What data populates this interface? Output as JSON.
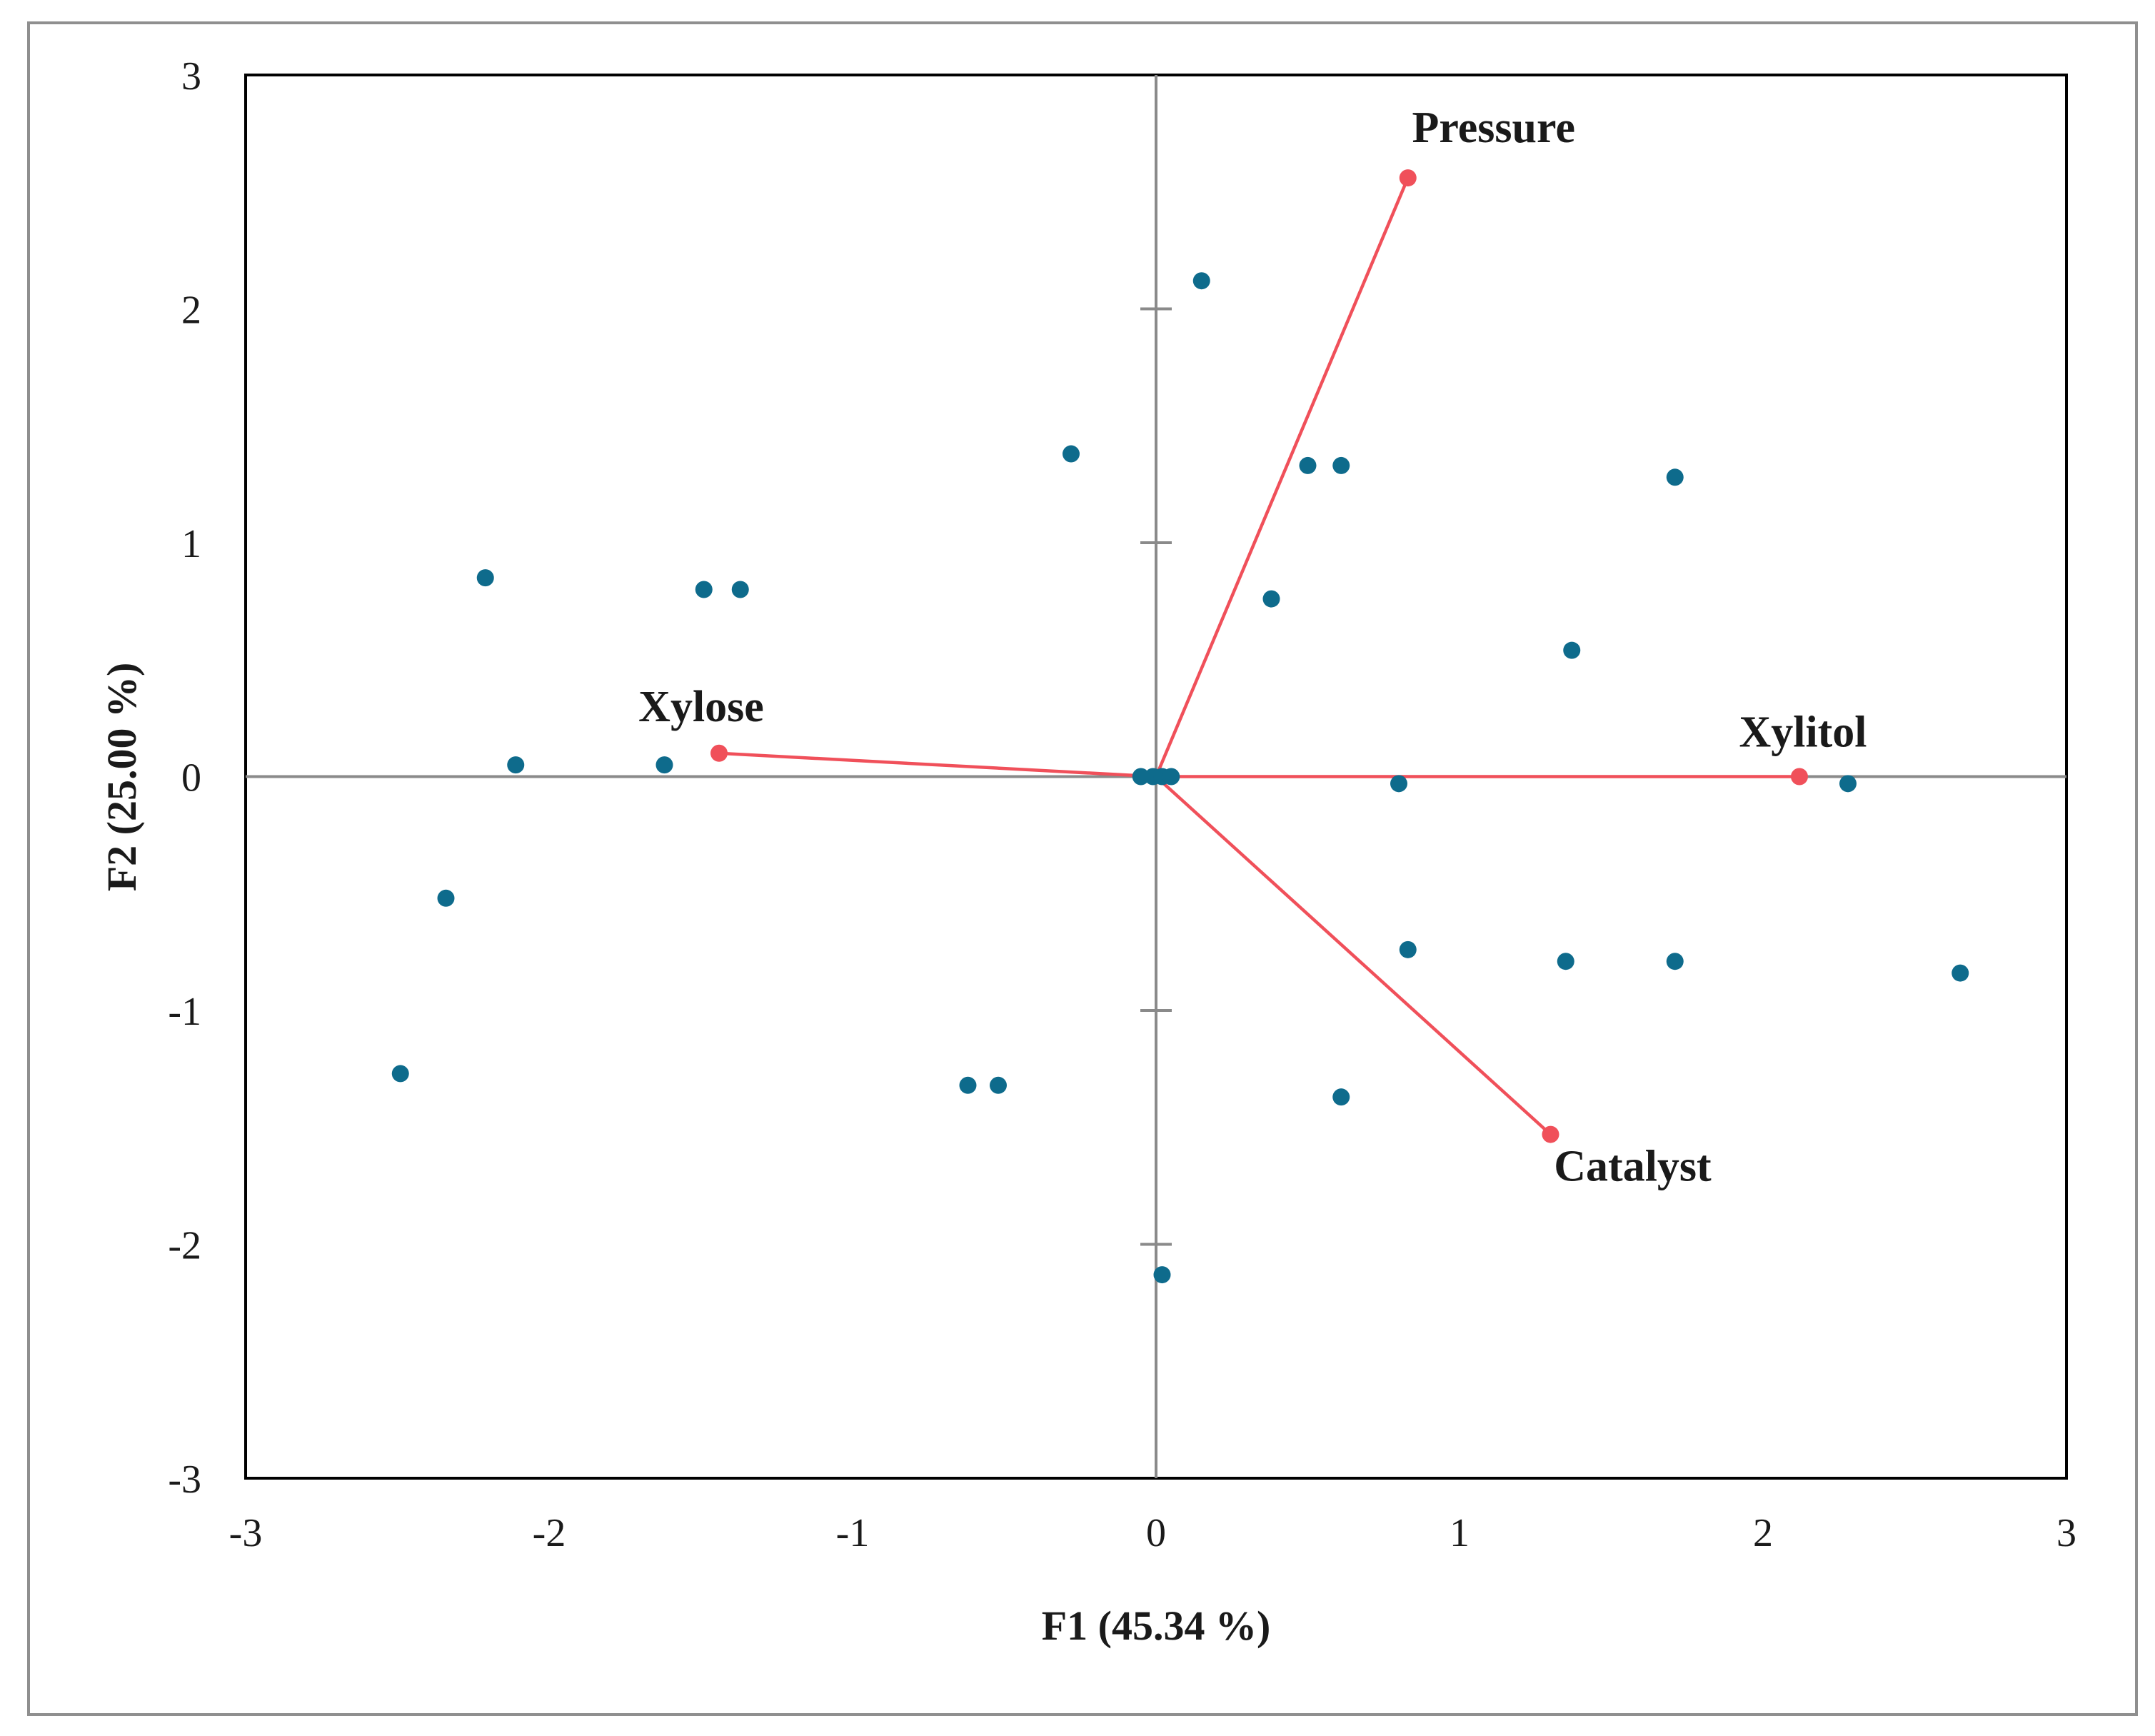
{
  "chart_data": {
    "type": "scatter",
    "title": "",
    "xlabel": "F1 (45.34 %)",
    "ylabel": "F2 (25.00 %)",
    "xlim": [
      -3,
      3
    ],
    "ylim": [
      -3,
      3
    ],
    "xticks": [
      "-3",
      "-2",
      "-1",
      "0",
      "1",
      "2",
      "3"
    ],
    "yticks": [
      "3",
      "2",
      "1",
      "0",
      "-1",
      "-2",
      "-3"
    ],
    "grid": false,
    "legend": "none",
    "colors": {
      "observations": "#0e6b8c",
      "variables": "#f0505a",
      "axes": "#8a8a8a",
      "frame": "#000000"
    },
    "observations": [
      {
        "x": 0.15,
        "y": 2.12
      },
      {
        "x": -0.28,
        "y": 1.38
      },
      {
        "x": 0.5,
        "y": 1.33
      },
      {
        "x": 0.61,
        "y": 1.33
      },
      {
        "x": 1.71,
        "y": 1.28
      },
      {
        "x": -2.21,
        "y": 0.85
      },
      {
        "x": -1.49,
        "y": 0.8
      },
      {
        "x": -1.37,
        "y": 0.8
      },
      {
        "x": 0.38,
        "y": 0.76
      },
      {
        "x": 1.37,
        "y": 0.54
      },
      {
        "x": -2.11,
        "y": 0.05
      },
      {
        "x": -1.62,
        "y": 0.05
      },
      {
        "x": -0.05,
        "y": 0.0
      },
      {
        "x": -0.01,
        "y": 0.0
      },
      {
        "x": 0.02,
        "y": 0.0
      },
      {
        "x": 0.05,
        "y": 0.0
      },
      {
        "x": 0.8,
        "y": -0.03
      },
      {
        "x": 2.28,
        "y": -0.03
      },
      {
        "x": -2.34,
        "y": -0.52
      },
      {
        "x": 0.83,
        "y": -0.74
      },
      {
        "x": 1.35,
        "y": -0.79
      },
      {
        "x": 1.71,
        "y": -0.79
      },
      {
        "x": 2.65,
        "y": -0.84
      },
      {
        "x": -2.49,
        "y": -1.27
      },
      {
        "x": -0.62,
        "y": -1.32
      },
      {
        "x": -0.52,
        "y": -1.32
      },
      {
        "x": 0.61,
        "y": -1.37
      },
      {
        "x": 0.02,
        "y": -2.13
      }
    ],
    "variables": [
      {
        "name": "Pressure",
        "x": 0.83,
        "y": 2.56
      },
      {
        "name": "Xylose",
        "x": -1.44,
        "y": 0.1
      },
      {
        "name": "Xylitol",
        "x": 2.12,
        "y": 0.0
      },
      {
        "name": "Catalyst",
        "x": 1.3,
        "y": -1.53
      }
    ]
  }
}
